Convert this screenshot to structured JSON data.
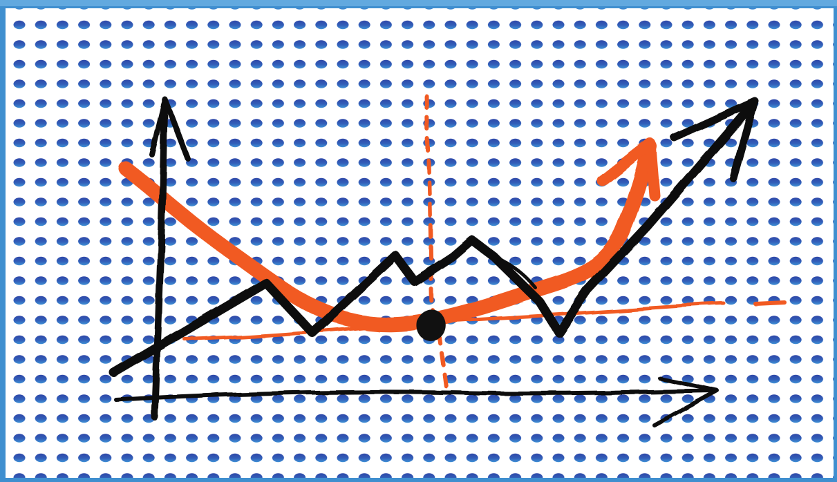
{
  "colors": {
    "frame": "#3f8fcf",
    "frame_light": "#6fb1e4",
    "paper": "#ffffff",
    "dot_top": "#2f48a8",
    "dot_bottom": "#3f86cf",
    "ink": "#111111",
    "marker_orange": "#f15a22"
  },
  "icons": {
    "y_axis_arrow": "arrow-up-icon",
    "x_axis_arrow": "arrow-right-icon",
    "black_trend_arrow": "trend-up-arrow-icon",
    "orange_trend_arrow": "curve-up-arrow-icon"
  }
}
